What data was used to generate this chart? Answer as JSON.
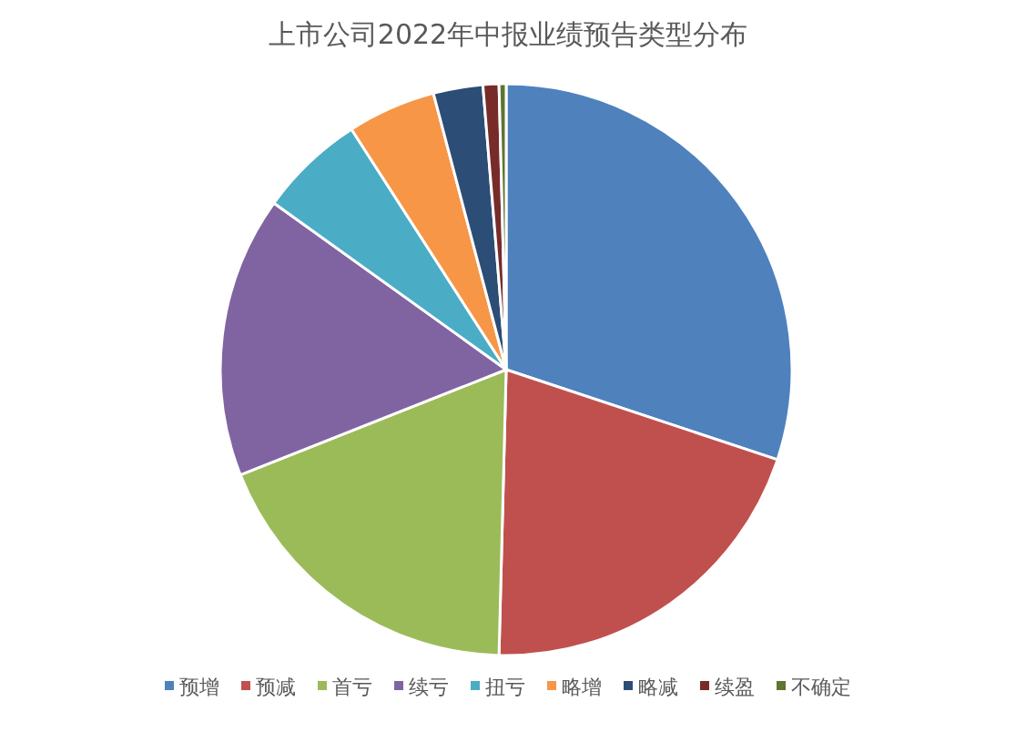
{
  "chart_data": {
    "type": "pie",
    "title": "上市公司2022年中报业绩预告类型分布",
    "categories": [
      "预增",
      "预减",
      "首亏",
      "续亏",
      "扭亏",
      "略增",
      "略减",
      "续盈",
      "不确定"
    ],
    "values": [
      30.1,
      20.3,
      18.6,
      15.9,
      6.0,
      5.0,
      2.8,
      0.9,
      0.4
    ],
    "colors": [
      "#4f81bd",
      "#c0504d",
      "#9bbb59",
      "#8064a2",
      "#4bacc6",
      "#f79646",
      "#2c4d75",
      "#772c2a",
      "#5f7530"
    ],
    "legend": "bottom"
  }
}
